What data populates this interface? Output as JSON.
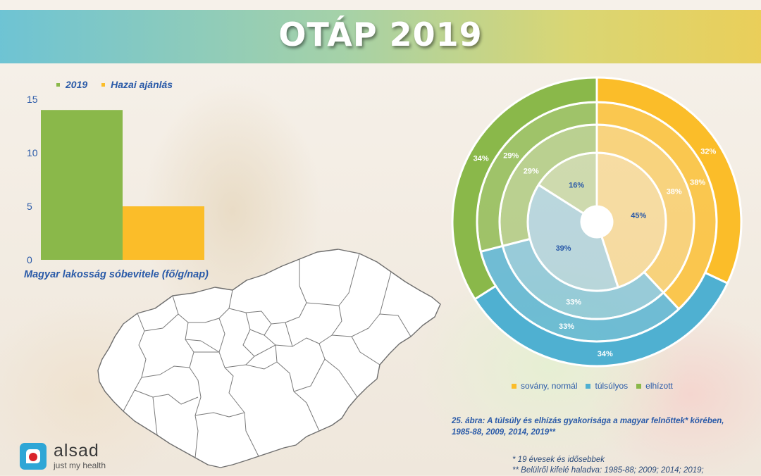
{
  "title": "OTÁP 2019",
  "bar_legend": {
    "items": [
      {
        "label": "2019",
        "color": "#8ab84a"
      },
      {
        "label": "Hazai ajánlás",
        "color": "#fbbd29"
      }
    ]
  },
  "chart_data": [
    {
      "type": "bar",
      "categories": [
        "2019",
        "Hazai ajánlás"
      ],
      "values": [
        14,
        5
      ],
      "colors": [
        "#8ab84a",
        "#fbbd29"
      ],
      "yticks": [
        "0",
        "5",
        "10",
        "15"
      ],
      "ylim": [
        0,
        15
      ],
      "xlabel": "Magyar lakosság sóbevitele (fő/g/nap)",
      "legend": "top"
    },
    {
      "type": "pie",
      "subtype": "nested-donut",
      "categories": [
        "sovány, normál",
        "túlsúlyos",
        "elhízott"
      ],
      "colors": [
        "#fbbd29",
        "#4fb0d1",
        "#8ab84a"
      ],
      "rings": [
        {
          "period": "1985-88",
          "values": [
            45,
            39,
            16
          ],
          "labels": [
            "45%",
            "39%",
            "16%"
          ]
        },
        {
          "period": "2009",
          "values": [
            38,
            33,
            29
          ],
          "labels": [
            "38%",
            "33%",
            "29%"
          ]
        },
        {
          "period": "2014",
          "values": [
            38,
            33,
            29
          ],
          "labels": [
            "38%",
            "33%",
            "29%"
          ]
        },
        {
          "period": "2019",
          "values": [
            32,
            34,
            34
          ],
          "labels": [
            "32%",
            "34%",
            "34%"
          ]
        }
      ],
      "legend": "bottom"
    }
  ],
  "donut_legend": [
    "sovány, normál",
    "túlsúlyos",
    "elhízott"
  ],
  "caption_line1": "25. ábra: A túlsúly és elhízás gyakorisága a magyar felnőttek* körében,",
  "caption_line2": "1985-88, 2009, 2014, 2019**",
  "note1": "*  19 évesek és idősebbek",
  "note2": "** Belülről kifelé haladva: 1985-88; 2009; 2014; 2019;",
  "logo": {
    "name": "alsad",
    "tagline": "just my health"
  }
}
